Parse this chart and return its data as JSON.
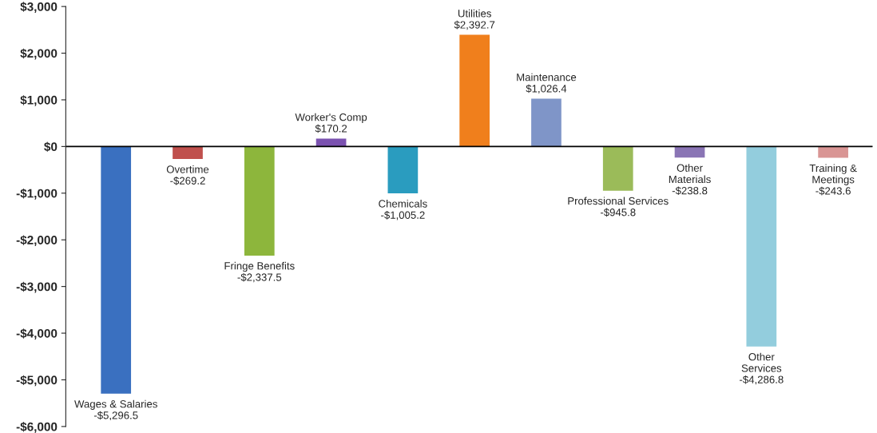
{
  "chart_data": {
    "type": "bar",
    "categories": [
      "Wages & Salaries",
      "Overtime",
      "Fringe Benefits",
      "Worker's Comp",
      "Chemicals",
      "Utilities",
      "Maintenance",
      "Professional Services",
      "Other\nMaterials",
      "Other\nServices",
      "Training &\nMeetings"
    ],
    "values": [
      -5296.5,
      -269.2,
      -2337.5,
      170.2,
      -1005.2,
      2392.7,
      1026.4,
      -945.8,
      -238.8,
      -4286.8,
      -243.6
    ],
    "value_labels": [
      "-$5,296.5",
      "-$269.2",
      "-$2,337.5",
      "$170.2",
      "-$1,005.2",
      "$2,392.7",
      "$1,026.4",
      "-$945.8",
      "-$238.8",
      "-$4,286.8",
      "-$243.6"
    ],
    "colors": [
      "#3a70c0",
      "#c0504d",
      "#8db63c",
      "#7b52b0",
      "#2a9cbf",
      "#f07f1c",
      "#7f95c8",
      "#9bbb59",
      "#8a75b5",
      "#93cddd",
      "#d99594"
    ],
    "ylim": [
      -6000,
      3000
    ],
    "yticks": [
      {
        "value": -6000,
        "label": "-$6,000"
      },
      {
        "value": -5000,
        "label": "-$5,000"
      },
      {
        "value": -4000,
        "label": "-$4,000"
      },
      {
        "value": -3000,
        "label": "-$3,000"
      },
      {
        "value": -2000,
        "label": "-$2,000"
      },
      {
        "value": -1000,
        "label": "-$1,000"
      },
      {
        "value": 0,
        "label": "$0"
      },
      {
        "value": 1000,
        "label": "$1,000"
      },
      {
        "value": 2000,
        "label": "$2,000"
      },
      {
        "value": 3000,
        "label": "$3,000"
      }
    ],
    "tick_labels": "y",
    "grid": false,
    "legend": false
  }
}
